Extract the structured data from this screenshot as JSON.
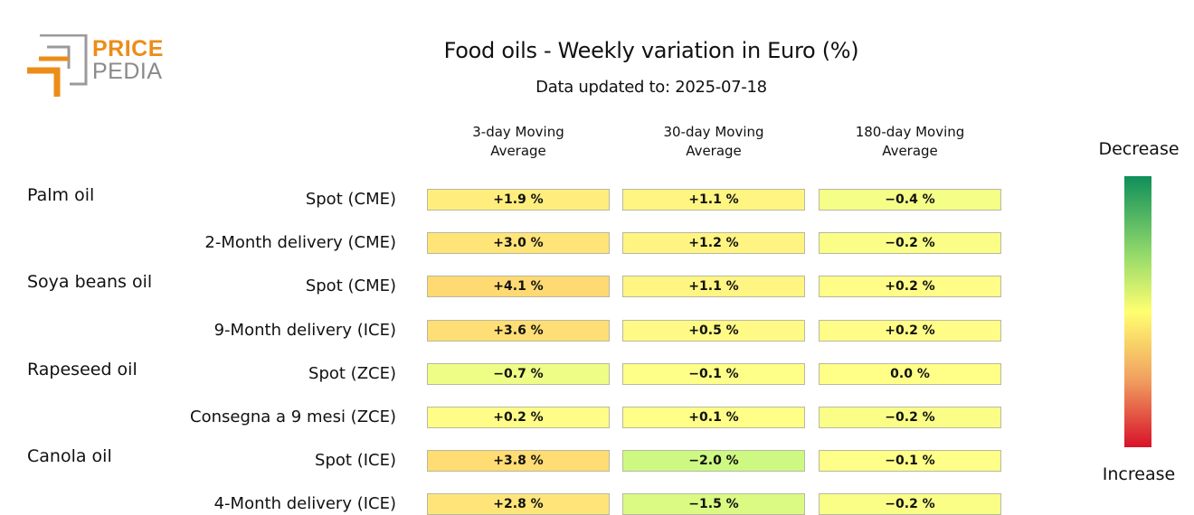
{
  "logo": {
    "line1": "PRICE",
    "line2": "PEDIA",
    "orange": "#ec8d18",
    "grey": "#8a8a8a"
  },
  "title": "Food oils - Weekly variation in Euro (%)",
  "subtitle": "Data updated to: 2025-07-18",
  "legend": {
    "top": "Decrease",
    "bottom": "Increase"
  },
  "chart_data": {
    "type": "heatmap",
    "columns": [
      "3-day Moving\nAverage",
      "30-day Moving\nAverage",
      "180-day Moving\nAverage"
    ],
    "groups": [
      {
        "name": "Palm oil",
        "rows": [
          {
            "label": "Spot (CME)",
            "values": [
              "+1.9 %",
              "+1.1 %",
              "-0.4 %"
            ]
          },
          {
            "label": "2-Month delivery (CME)",
            "values": [
              "+3.0 %",
              "+1.2 %",
              "-0.2 %"
            ]
          }
        ]
      },
      {
        "name": "Soya beans oil",
        "rows": [
          {
            "label": "Spot (CME)",
            "values": [
              "+4.1 %",
              "+1.1 %",
              "+0.2 %"
            ]
          },
          {
            "label": "9-Month delivery (ICE)",
            "values": [
              "+3.6 %",
              "+0.5 %",
              "+0.2 %"
            ]
          }
        ]
      },
      {
        "name": "Rapeseed oil",
        "rows": [
          {
            "label": "Spot (ZCE)",
            "values": [
              "-0.7 %",
              "-0.1 %",
              "0.0 %"
            ]
          },
          {
            "label": "Consegna a 9 mesi (ZCE)",
            "values": [
              "+0.2 %",
              "+0.1 %",
              "-0.2 %"
            ]
          }
        ]
      },
      {
        "name": "Canola oil",
        "rows": [
          {
            "label": "Spot (ICE)",
            "values": [
              "+3.8 %",
              "-2.0 %",
              "-0.1 %"
            ]
          },
          {
            "label": "4-Month delivery (ICE)",
            "values": [
              "+2.8 %",
              "-1.5 %",
              "-0.2 %"
            ]
          }
        ]
      }
    ],
    "color_scale": {
      "decrease": "#0f8f5a",
      "neutral": "#ffff70",
      "increase": "#d8122a"
    }
  }
}
